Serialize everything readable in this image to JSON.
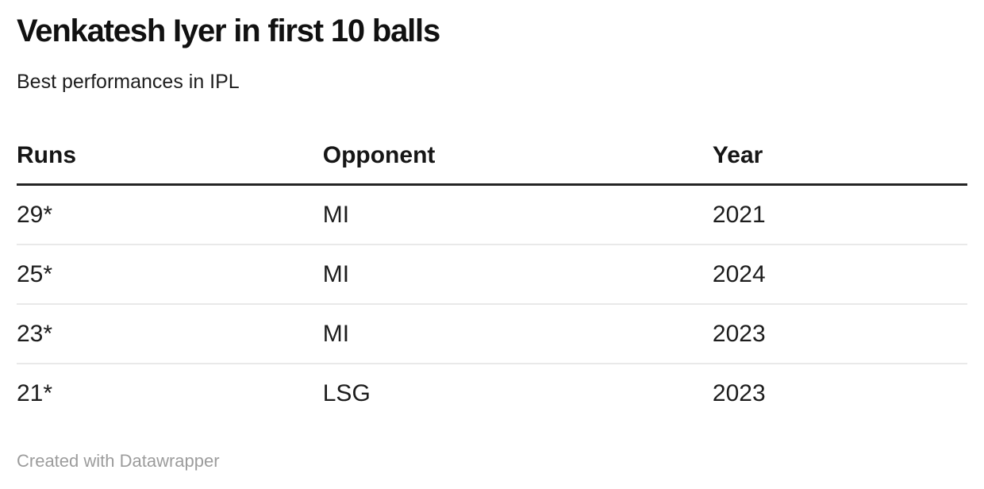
{
  "chart_data": {
    "type": "table",
    "title": "Venkatesh Iyer in first 10 balls",
    "subtitle": "Best performances in IPL",
    "columns": [
      "Runs",
      "Opponent",
      "Year"
    ],
    "rows": [
      [
        "29*",
        "MI",
        "2021"
      ],
      [
        "25*",
        "MI",
        "2024"
      ],
      [
        "23*",
        "MI",
        "2023"
      ],
      [
        "21*",
        "LSG",
        "2023"
      ]
    ],
    "footer": "Created with Datawrapper",
    "layout_hints": {
      "grid": "horizontal row separators only",
      "header_rule": "thick dark line under header",
      "alignment": "all columns left-aligned"
    }
  },
  "colors": {
    "background": "#ffffff",
    "title_text": "#111111",
    "body_text": "#1d1d1d",
    "header_rule": "#242424",
    "row_separator": "#e9e9e9",
    "footer_text": "#9c9c9c"
  }
}
